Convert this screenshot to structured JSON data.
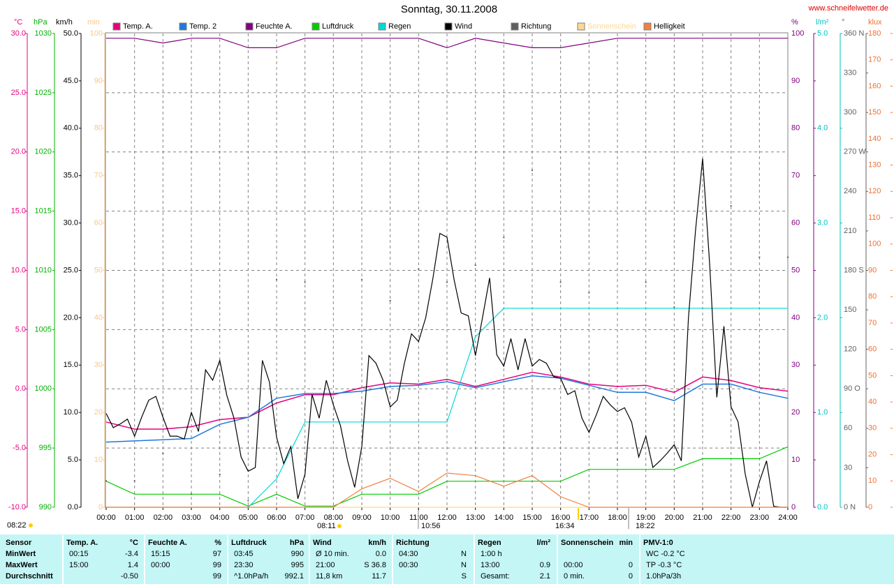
{
  "chart_data": {
    "type": "line",
    "title": "Sonntag, 30.11.2008",
    "source": "www.schneifelwetter.de",
    "xlim": [
      0,
      24
    ],
    "xticks": [
      {
        "value": 0,
        "label": "00:00"
      },
      {
        "value": 1,
        "label": "01:00"
      },
      {
        "value": 2,
        "label": "02:00"
      },
      {
        "value": 3,
        "label": "03:00"
      },
      {
        "value": 4,
        "label": "04:00"
      },
      {
        "value": 5,
        "label": "05:00"
      },
      {
        "value": 6,
        "label": "06:00"
      },
      {
        "value": 7,
        "label": "07:00"
      },
      {
        "value": 8,
        "label": "08:00"
      },
      {
        "value": 9,
        "label": "09:00"
      },
      {
        "value": 10,
        "label": "10:00"
      },
      {
        "value": 11,
        "label": "11:00"
      },
      {
        "value": 12,
        "label": "12:00"
      },
      {
        "value": 13,
        "label": "13:00"
      },
      {
        "value": 14,
        "label": "14:00"
      },
      {
        "value": 15,
        "label": "15:00"
      },
      {
        "value": 16,
        "label": "16:00"
      },
      {
        "value": 17,
        "label": "17:00"
      },
      {
        "value": 18,
        "label": "18:00"
      },
      {
        "value": 19,
        "label": "19:00"
      },
      {
        "value": 20,
        "label": "20:00"
      },
      {
        "value": 21,
        "label": "21:00"
      },
      {
        "value": 22,
        "label": "22:00"
      },
      {
        "value": 23,
        "label": "23:00"
      },
      {
        "value": 24,
        "label": "24:00"
      }
    ],
    "grid": true,
    "axes": [
      {
        "label": "°C",
        "side": "left",
        "color": "#e6007e",
        "lim": [
          -10,
          30
        ],
        "ticks": [
          {
            "value": -10,
            "label": "-10.0"
          },
          {
            "value": -5,
            "label": "-5.0"
          },
          {
            "value": 0,
            "label": "0.0"
          },
          {
            "value": 5,
            "label": "5.0"
          },
          {
            "value": 10,
            "label": "10.0"
          },
          {
            "value": 15,
            "label": "15.0"
          },
          {
            "value": 20,
            "label": "20.0"
          },
          {
            "value": 25,
            "label": "25.0"
          },
          {
            "value": 30,
            "label": "30.0"
          }
        ]
      },
      {
        "label": "hPa",
        "side": "left",
        "color": "#00b000",
        "lim": [
          990,
          1030
        ],
        "ticks": [
          990,
          995,
          1000,
          1005,
          1010,
          1015,
          1020,
          1025,
          1030
        ]
      },
      {
        "label": "km/h",
        "side": "left",
        "color": "#000000",
        "lim": [
          0,
          50
        ],
        "ticks": [
          {
            "value": 0,
            "label": "0.0"
          },
          {
            "value": 5,
            "label": "5.0"
          },
          {
            "value": 10,
            "label": "10.0"
          },
          {
            "value": 15,
            "label": "15.0"
          },
          {
            "value": 20,
            "label": "20.0"
          },
          {
            "value": 25,
            "label": "25.0"
          },
          {
            "value": 30,
            "label": "30.0"
          },
          {
            "value": 35,
            "label": "35.0"
          },
          {
            "value": 40,
            "label": "40.0"
          },
          {
            "value": 45,
            "label": "45.0"
          },
          {
            "value": 50,
            "label": "50.0"
          }
        ]
      },
      {
        "label": "min",
        "side": "left",
        "color": "#f5c890",
        "lim": [
          0,
          100
        ],
        "ticks": [
          0,
          10,
          20,
          30,
          40,
          50,
          60,
          70,
          80,
          90,
          100
        ]
      },
      {
        "label": "%",
        "side": "right",
        "color": "#800080",
        "lim": [
          0,
          100
        ],
        "ticks": [
          0,
          10,
          20,
          30,
          40,
          50,
          60,
          70,
          80,
          90,
          100
        ]
      },
      {
        "label": "l/m²",
        "side": "right",
        "color": "#00c0c0",
        "lim": [
          0,
          5
        ],
        "ticks": [
          {
            "value": 0,
            "label": "0.0"
          },
          {
            "value": 1,
            "label": "1.0"
          },
          {
            "value": 2,
            "label": "2.0"
          },
          {
            "value": 3,
            "label": "3.0"
          },
          {
            "value": 4,
            "label": "4.0"
          },
          {
            "value": 5,
            "label": "5.0"
          }
        ]
      },
      {
        "label": "°",
        "side": "right",
        "color": "#606060",
        "lim": [
          0,
          360
        ],
        "ticks": [
          {
            "value": 0,
            "label": "0 N"
          },
          30,
          60,
          {
            "value": 90,
            "label": "90 O"
          },
          120,
          150,
          {
            "value": 180,
            "label": "180 S"
          },
          210,
          240,
          {
            "value": 270,
            "label": "270 W"
          },
          300,
          330,
          {
            "value": 360,
            "label": "360 N"
          }
        ]
      },
      {
        "label": "klux",
        "side": "right",
        "color": "#f07030",
        "lim": [
          0,
          180
        ],
        "ticks": [
          0,
          10,
          20,
          30,
          40,
          50,
          60,
          70,
          80,
          90,
          100,
          110,
          120,
          130,
          140,
          150,
          160,
          170,
          180
        ]
      }
    ],
    "x": [
      0,
      1,
      2,
      3,
      4,
      5,
      6,
      7,
      8,
      9,
      10,
      11,
      12,
      13,
      14,
      15,
      16,
      17,
      18,
      19,
      20,
      21,
      22,
      23,
      24
    ],
    "series": [
      {
        "name": "Temp. A.",
        "color": "#e6007e",
        "axis": 0,
        "values": [
          -2.8,
          -3.4,
          -3.4,
          -3.2,
          -2.6,
          -2.4,
          -1.2,
          -0.5,
          -0.5,
          0.1,
          0.5,
          0.4,
          0.8,
          0.2,
          0.8,
          1.4,
          1.0,
          0.4,
          0.2,
          0.3,
          -0.3,
          1.0,
          0.7,
          0.1,
          -0.2
        ]
      },
      {
        "name": "Temp. 2",
        "color": "#1e78dc",
        "axis": 0,
        "values": [
          -4.5,
          -4.4,
          -4.3,
          -4.2,
          -3.0,
          -2.4,
          -0.8,
          -0.4,
          -0.4,
          -0.2,
          0.2,
          0.3,
          0.6,
          0.1,
          0.6,
          1.1,
          0.9,
          0.3,
          -0.3,
          -0.3,
          -1.0,
          0.4,
          0.4,
          -0.3,
          -0.8
        ]
      },
      {
        "name": "Feuchte A.",
        "color": "#800080",
        "axis": 4,
        "values": [
          99,
          99,
          98,
          99,
          99,
          97,
          97,
          99,
          99,
          99,
          99,
          99,
          97,
          99,
          98,
          97,
          97,
          98,
          99,
          99,
          99,
          99,
          99,
          99,
          99
        ]
      },
      {
        "name": "Luftdruck",
        "color": "#00cc00",
        "axis": 1,
        "values": [
          992.2,
          991.1,
          991.1,
          991.1,
          991.1,
          990.1,
          991.1,
          990.1,
          990.1,
          991.1,
          991.1,
          991.1,
          992.2,
          992.2,
          992.2,
          992.2,
          992.2,
          993.2,
          993.2,
          993.2,
          993.2,
          994.1,
          994.1,
          994.1,
          995.1
        ]
      },
      {
        "name": "Regen",
        "color": "#00d8d8",
        "axis": 5,
        "values": [
          0,
          0,
          0,
          0,
          0,
          0,
          0.3,
          0.9,
          0.9,
          0.9,
          0.9,
          0.9,
          0.9,
          1.8,
          2.1,
          2.1,
          2.1,
          2.1,
          2.1,
          2.1,
          2.1,
          2.1,
          2.1,
          2.1,
          2.1
        ]
      },
      {
        "name": "Wind",
        "color": "#000000",
        "axis": 2,
        "x": [
          0,
          0.25,
          0.5,
          0.75,
          1,
          1.25,
          1.5,
          1.75,
          2,
          2.25,
          2.5,
          2.75,
          3,
          3.25,
          3.5,
          3.75,
          4,
          4.25,
          4.5,
          4.75,
          5,
          5.25,
          5.5,
          5.75,
          6,
          6.25,
          6.5,
          6.75,
          7,
          7.25,
          7.5,
          7.75,
          8,
          8.25,
          8.5,
          8.75,
          9,
          9.25,
          9.5,
          9.75,
          10,
          10.25,
          10.5,
          10.75,
          11,
          11.25,
          11.5,
          11.75,
          12,
          12.25,
          12.5,
          12.75,
          13,
          13.25,
          13.5,
          13.75,
          14,
          14.25,
          14.5,
          14.75,
          15,
          15.25,
          15.5,
          15.75,
          16,
          16.25,
          16.5,
          16.75,
          17,
          17.25,
          17.5,
          17.75,
          18,
          18.25,
          18.5,
          18.75,
          19,
          19.25,
          19.5,
          19.75,
          20,
          20.25,
          20.5,
          20.75,
          21,
          21.25,
          21.5,
          21.75,
          22,
          22.25,
          22.5,
          22.75,
          23,
          23.25,
          23.5,
          23.75,
          24
        ],
        "values": [
          9.9,
          8.4,
          8.8,
          9.3,
          7.5,
          9.5,
          11.3,
          11.7,
          9.5,
          7.5,
          7.5,
          7.2,
          10,
          8,
          14.5,
          13.4,
          15.5,
          11.8,
          9.4,
          5.3,
          3.8,
          4.2,
          15.5,
          13.2,
          7.4,
          4.6,
          6.4,
          0.9,
          3.5,
          11.9,
          9.4,
          13.4,
          10.8,
          8.6,
          4.9,
          2.1,
          6.4,
          16,
          15.2,
          13.4,
          10.6,
          11.3,
          15.2,
          18.3,
          17.5,
          20,
          24.1,
          28.9,
          28.5,
          24,
          20.5,
          20.2,
          16,
          20,
          24.2,
          16.1,
          14.9,
          17.8,
          14.5,
          17.8,
          14.9,
          15.6,
          15.2,
          13.8,
          13.6,
          11.9,
          12.3,
          9.4,
          7.9,
          9.7,
          11.7,
          10.8,
          10.1,
          10.5,
          9.0,
          5.3,
          7.5,
          4.2,
          4.9,
          5.7,
          6.6,
          4.9,
          20,
          29.2,
          36.8,
          25.5,
          11.6,
          19.1,
          10.6,
          9.0,
          3.5,
          0,
          2.7,
          4.9,
          0.1,
          0,
          0
        ]
      },
      {
        "name": "Richtung",
        "color": "#606060",
        "axis": 6,
        "style": "dots",
        "values": [
          20,
          20,
          41,
          10,
          25,
          5,
          173,
          171,
          67,
          173,
          157,
          181,
          171,
          184,
          205,
          256,
          171,
          163,
          36,
          171,
          152,
          195,
          229,
          190,
          190
        ]
      },
      {
        "name": "Sonnenschein",
        "color": "#ffd890",
        "axis": 3,
        "values": [
          0,
          0,
          0,
          0,
          0,
          0,
          0,
          0,
          0,
          0,
          0,
          0,
          0,
          0,
          0,
          0,
          0,
          0,
          0,
          0,
          0,
          0,
          0,
          0,
          0
        ]
      },
      {
        "name": "Helligkeit",
        "color": "#f08040",
        "axis": 7,
        "values": [
          0,
          0,
          0,
          0,
          0,
          0,
          0,
          0,
          0,
          7,
          11,
          6,
          13,
          12,
          8,
          12,
          4,
          0,
          0,
          0,
          0,
          0,
          0,
          0,
          0
        ]
      }
    ],
    "annotations": [
      "08:22",
      "08:11",
      "10:56",
      "16:34",
      "18:22"
    ]
  },
  "table": {
    "header": [
      {
        "label": "Sensor"
      },
      {
        "label": "Temp. A.",
        "unit": "°C"
      },
      {
        "label": "Feuchte A.",
        "unit": "%"
      },
      {
        "label": "Luftdruck",
        "unit": "hPa"
      },
      {
        "label": "Wind",
        "unit": "km/h"
      },
      {
        "label": "Richtung"
      },
      {
        "label": "Regen",
        "unit": "l/m²"
      },
      {
        "label": "Sonnenschein",
        "unit": "min"
      },
      {
        "label": "PMV-1:0"
      }
    ],
    "rows": [
      {
        "name": "MinWert",
        "cells": [
          [
            "00:15",
            "-3.4"
          ],
          [
            "15:15",
            "97"
          ],
          [
            "03:45",
            "990"
          ],
          [
            "Ø 10 min.",
            "0.0"
          ],
          [
            "04:30",
            "N"
          ],
          [
            "1:00 h",
            null
          ],
          [
            null,
            null
          ],
          [
            "WC -0.2 °C"
          ]
        ]
      },
      {
        "name": "MaxWert",
        "cells": [
          [
            "15:00",
            "1.4"
          ],
          [
            "00:00",
            "99"
          ],
          [
            "23:30",
            "995"
          ],
          [
            "21:00",
            "S 36.8"
          ],
          [
            "00:30",
            "N"
          ],
          [
            "13:00",
            "0.9"
          ],
          [
            "00:00",
            "0"
          ],
          [
            "TP -0.3 °C"
          ]
        ]
      },
      {
        "name": "Durchschnitt",
        "cells": [
          [
            null,
            "-0.50"
          ],
          [
            null,
            "99"
          ],
          [
            "^1.0hPa/h",
            "992.1"
          ],
          [
            "11,8 km",
            "11.7"
          ],
          [
            null,
            "S"
          ],
          [
            "Gesamt:",
            "2.1"
          ],
          [
            "0 min.",
            "0"
          ],
          [
            "1.0hPa/3h"
          ]
        ]
      }
    ]
  }
}
